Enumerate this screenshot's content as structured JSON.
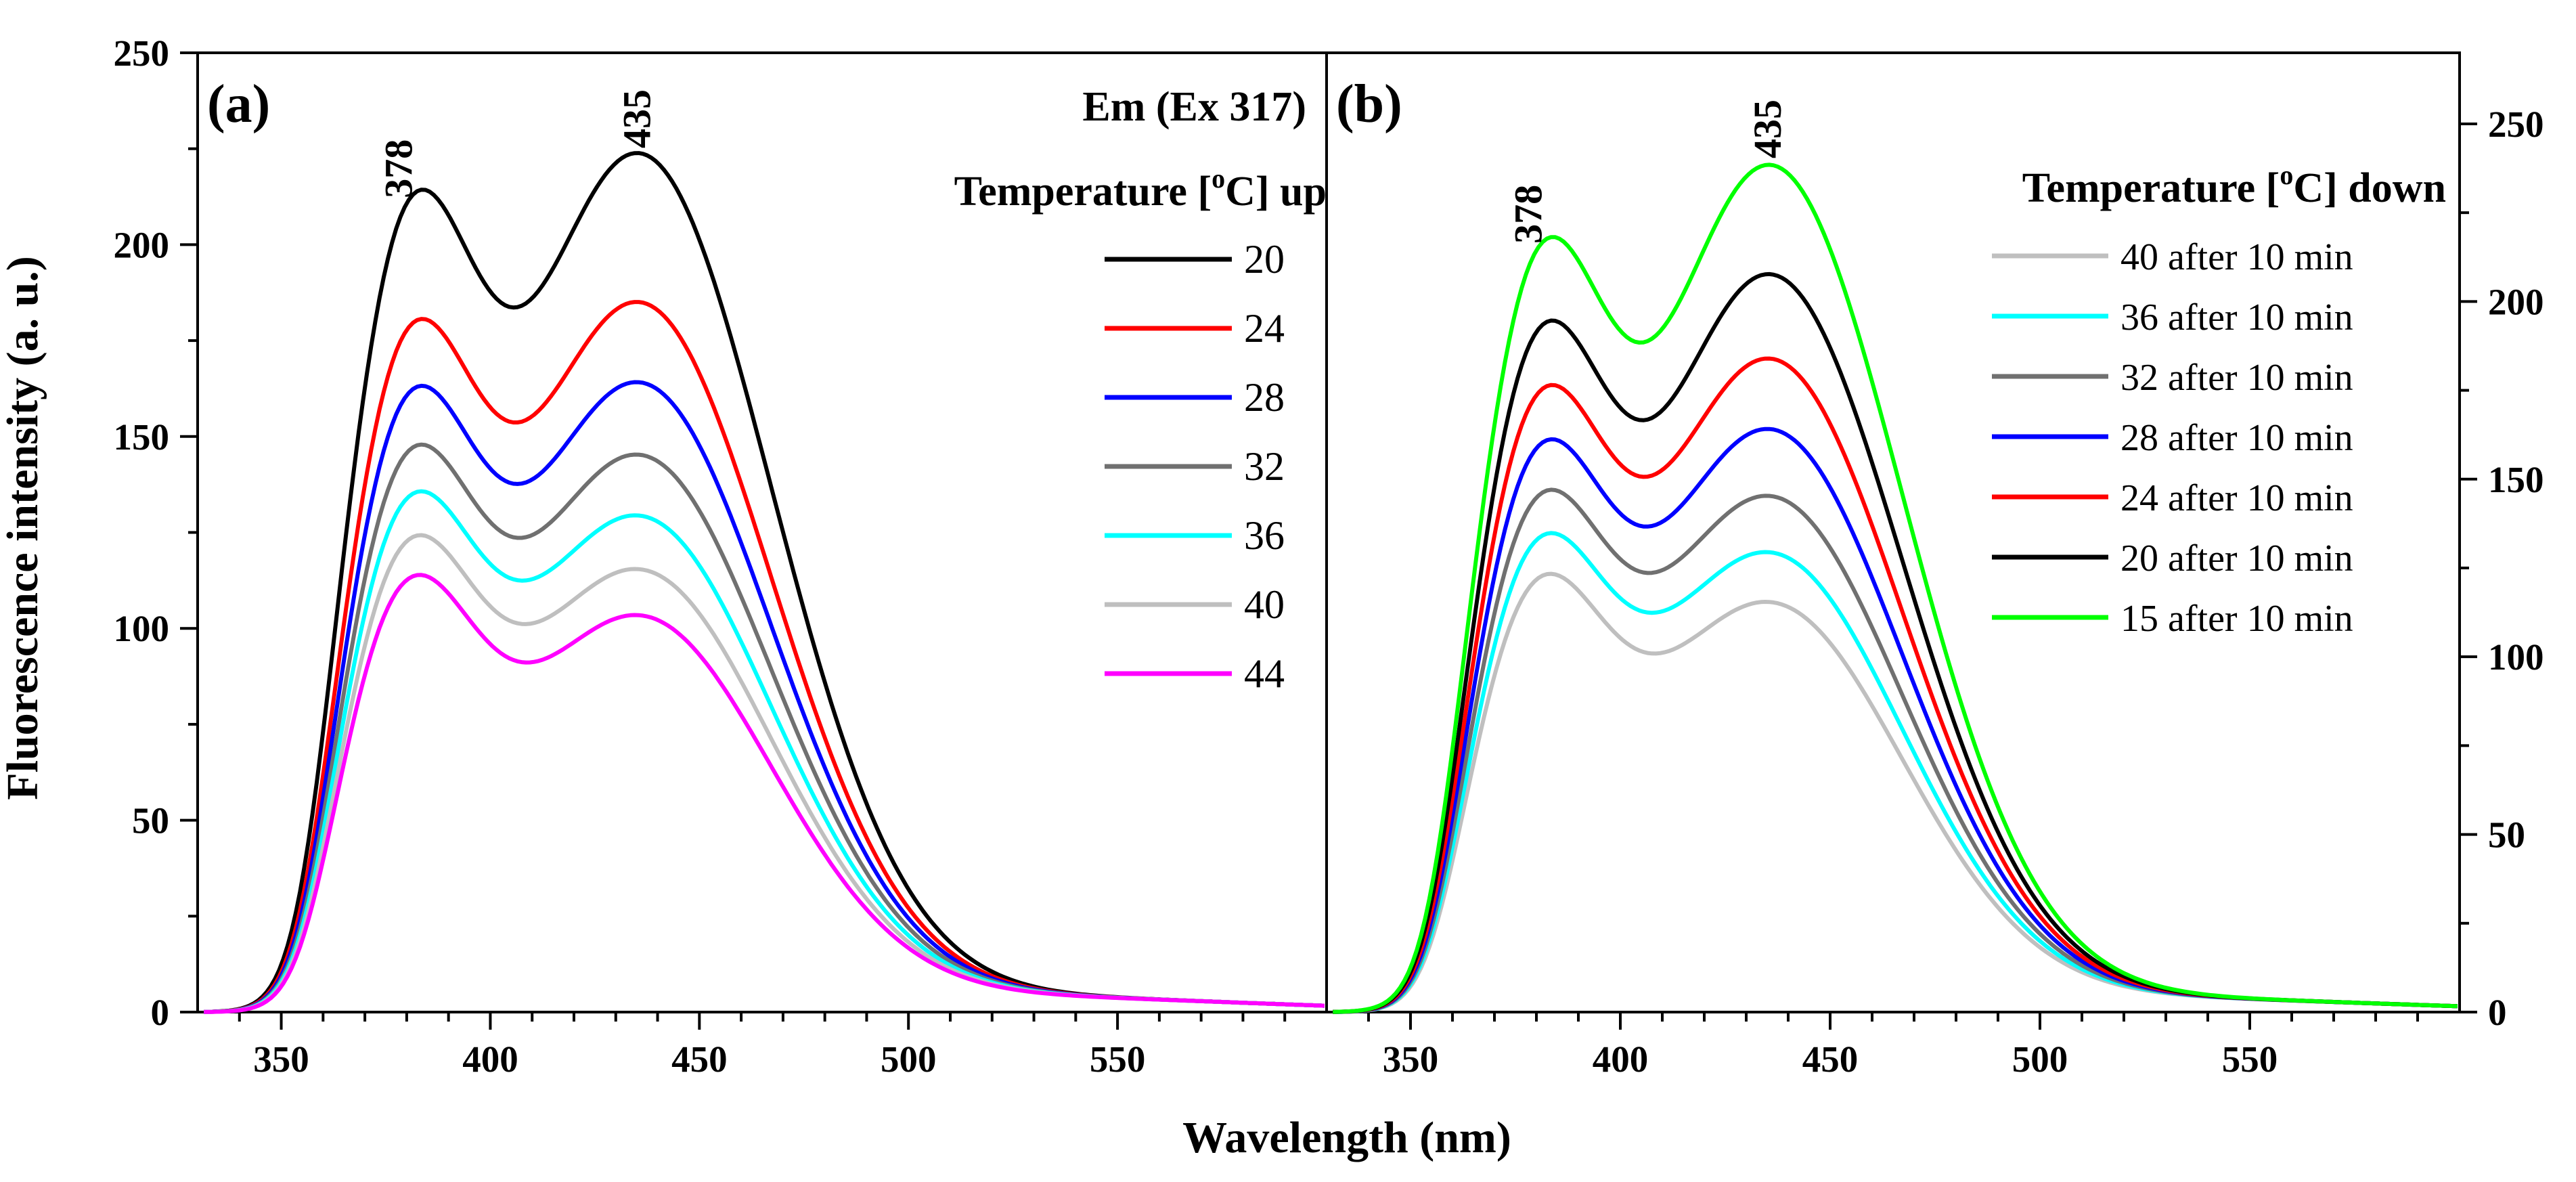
{
  "figure": {
    "xlabel": "Wavelength (nm)",
    "ylabel": "Fluorescence intensity (a. u.)"
  },
  "chart_data": [
    {
      "type": "line",
      "panel": "(a)",
      "title": "Em (Ex 317)",
      "legend_title": {
        "pre": "Temperature [",
        "sup": "o",
        "post": "C] up"
      },
      "xlabel": "Wavelength (nm)",
      "ylabel": "Fluorescence intensity (a. u.)",
      "xlim": [
        330,
        600
      ],
      "ylim": [
        0,
        250
      ],
      "x_ticks": [
        "350",
        "400",
        "450",
        "500",
        "550"
      ],
      "y_ticks": [
        "0",
        "50",
        "100",
        "150",
        "200",
        "250"
      ],
      "peak_labels": [
        {
          "x": 378,
          "text": "378"
        },
        {
          "x": 435,
          "text": "435"
        }
      ],
      "series": [
        {
          "name": "20",
          "color": "#000000",
          "peak1": 210,
          "valley": 183,
          "peak2": 223
        },
        {
          "name": "24",
          "color": "#ff0000",
          "peak1": 177,
          "valley": 153,
          "peak2": 184
        },
        {
          "name": "28",
          "color": "#0000ff",
          "peak1": 160,
          "valley": 137,
          "peak2": 163
        },
        {
          "name": "32",
          "color": "#707070",
          "peak1": 145,
          "valley": 123,
          "peak2": 144
        },
        {
          "name": "36",
          "color": "#00ffff",
          "peak1": 133,
          "valley": 112,
          "peak2": 128
        },
        {
          "name": "40",
          "color": "#bfbfbf",
          "peak1": 122,
          "valley": 102,
          "peak2": 114
        },
        {
          "name": "44",
          "color": "#ff00ff",
          "peak1": 112,
          "valley": 92,
          "peak2": 102
        }
      ]
    },
    {
      "type": "line",
      "panel": "(b)",
      "legend_title": {
        "pre": "Temperature [",
        "sup": "o",
        "post": "C] down"
      },
      "xlabel": "Wavelength (nm)",
      "xlim": [
        330,
        600
      ],
      "ylim": [
        0,
        270
      ],
      "x_ticks": [
        "350",
        "400",
        "450",
        "500",
        "550"
      ],
      "y_ticks": [
        "0",
        "50",
        "100",
        "150",
        "200",
        "250"
      ],
      "peak_labels": [
        {
          "x": 378,
          "text": "378"
        },
        {
          "x": 435,
          "text": "435"
        }
      ],
      "series": [
        {
          "name": "40 after 10 min",
          "color": "#bfbfbf",
          "peak1": 121,
          "valley": 103,
          "peak2": 114
        },
        {
          "name": "36 after 10 min",
          "color": "#00ffff",
          "peak1": 132,
          "valley": 113,
          "peak2": 128
        },
        {
          "name": "32 after 10 min",
          "color": "#707070",
          "peak1": 144,
          "valley": 123,
          "peak2": 144
        },
        {
          "name": "28 after 10 min",
          "color": "#0000ff",
          "peak1": 158,
          "valley": 136,
          "peak2": 163
        },
        {
          "name": "24 after 10 min",
          "color": "#ff0000",
          "peak1": 173,
          "valley": 150,
          "peak2": 183
        },
        {
          "name": "20 after 10 min",
          "color": "#000000",
          "peak1": 191,
          "valley": 166,
          "peak2": 207
        },
        {
          "name": "15 after 10 min",
          "color": "#00ff00",
          "peak1": 214,
          "valley": 188,
          "peak2": 238
        }
      ]
    }
  ]
}
